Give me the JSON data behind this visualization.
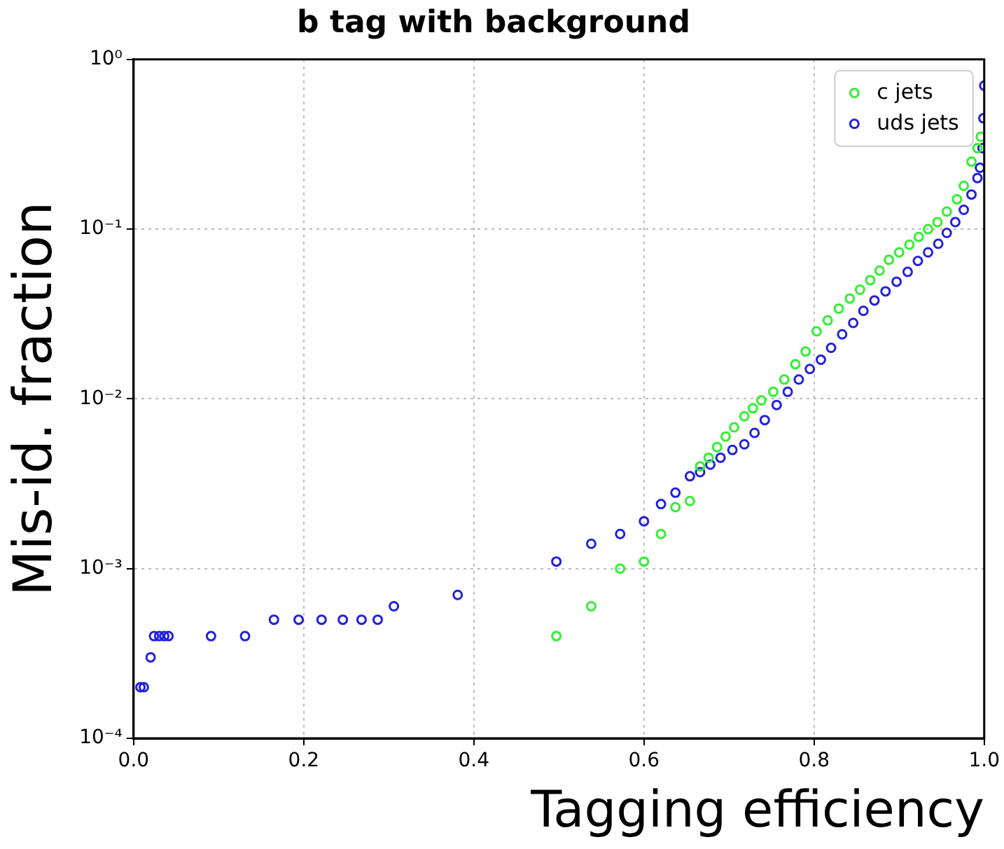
{
  "chart_data": {
    "type": "scatter",
    "title": "b tag with background",
    "xlabel": "Tagging efficiency",
    "ylabel": "Mis-id. fraction",
    "log": "y",
    "grid": true,
    "legend": "top right",
    "marker": "circle",
    "xlim": [
      0,
      1
    ],
    "xticks": [
      {
        "value": 0,
        "label": "0.0"
      },
      {
        "value": 0.2,
        "label": "0.2"
      },
      {
        "value": 0.4,
        "label": "0.4"
      },
      {
        "value": 0.6,
        "label": "0.6"
      },
      {
        "value": 0.8,
        "label": "0.8"
      },
      {
        "value": 1,
        "label": "1.0"
      }
    ],
    "ylim": [
      0.0001,
      1
    ],
    "yticks": [
      {
        "value": 0.0001,
        "label": "10⁻⁴"
      },
      {
        "value": 0.001,
        "label": "10⁻³"
      },
      {
        "value": 0.01,
        "label": "10⁻²"
      },
      {
        "value": 0.1,
        "label": "10⁻¹"
      },
      {
        "value": 1,
        "label": "10⁰"
      }
    ],
    "series": [
      {
        "name": "c jets",
        "color": "#33ee33",
        "x": [
          0.497,
          0.538,
          0.572,
          0.6,
          0.62,
          0.637,
          0.654,
          0.666,
          0.676,
          0.686,
          0.696,
          0.706,
          0.718,
          0.728,
          0.738,
          0.752,
          0.765,
          0.778,
          0.79,
          0.803,
          0.816,
          0.829,
          0.842,
          0.854,
          0.866,
          0.877,
          0.888,
          0.9,
          0.912,
          0.923,
          0.934,
          0.945,
          0.956,
          0.968,
          0.976,
          0.985,
          0.992,
          0.996
        ],
        "values": [
          0.0004,
          0.0006,
          0.001,
          0.0011,
          0.0016,
          0.0023,
          0.0025,
          0.004,
          0.0045,
          0.0052,
          0.006,
          0.0068,
          0.0079,
          0.0088,
          0.0098,
          0.011,
          0.013,
          0.016,
          0.019,
          0.025,
          0.029,
          0.034,
          0.039,
          0.044,
          0.05,
          0.057,
          0.066,
          0.073,
          0.081,
          0.09,
          0.1,
          0.11,
          0.127,
          0.15,
          0.18,
          0.25,
          0.3,
          0.35
        ]
      },
      {
        "name": "uds jets",
        "color": "#2222dd",
        "x": [
          0.008,
          0.012,
          0.02,
          0.024,
          0.03,
          0.036,
          0.041,
          0.091,
          0.131,
          0.165,
          0.194,
          0.221,
          0.246,
          0.268,
          0.287,
          0.306,
          0.381,
          0.497,
          0.538,
          0.572,
          0.6,
          0.62,
          0.637,
          0.654,
          0.666,
          0.678,
          0.69,
          0.704,
          0.718,
          0.73,
          0.742,
          0.756,
          0.769,
          0.782,
          0.795,
          0.808,
          0.82,
          0.833,
          0.846,
          0.858,
          0.871,
          0.884,
          0.897,
          0.91,
          0.922,
          0.934,
          0.946,
          0.956,
          0.966,
          0.976,
          0.985,
          0.992,
          0.995,
          0.998,
          0.999,
          1
        ],
        "values": [
          0.0002,
          0.0002,
          0.0003,
          0.0004,
          0.0004,
          0.0004,
          0.0004,
          0.0004,
          0.0004,
          0.0005,
          0.0005,
          0.0005,
          0.0005,
          0.0005,
          0.0005,
          0.0006,
          0.0007,
          0.0011,
          0.0014,
          0.0016,
          0.0019,
          0.0024,
          0.0028,
          0.0035,
          0.0037,
          0.0041,
          0.0045,
          0.005,
          0.0054,
          0.0063,
          0.0075,
          0.0092,
          0.011,
          0.013,
          0.015,
          0.017,
          0.02,
          0.024,
          0.028,
          0.033,
          0.038,
          0.043,
          0.049,
          0.056,
          0.065,
          0.073,
          0.082,
          0.095,
          0.11,
          0.13,
          0.16,
          0.2,
          0.23,
          0.3,
          0.45,
          0.7
        ]
      }
    ]
  }
}
